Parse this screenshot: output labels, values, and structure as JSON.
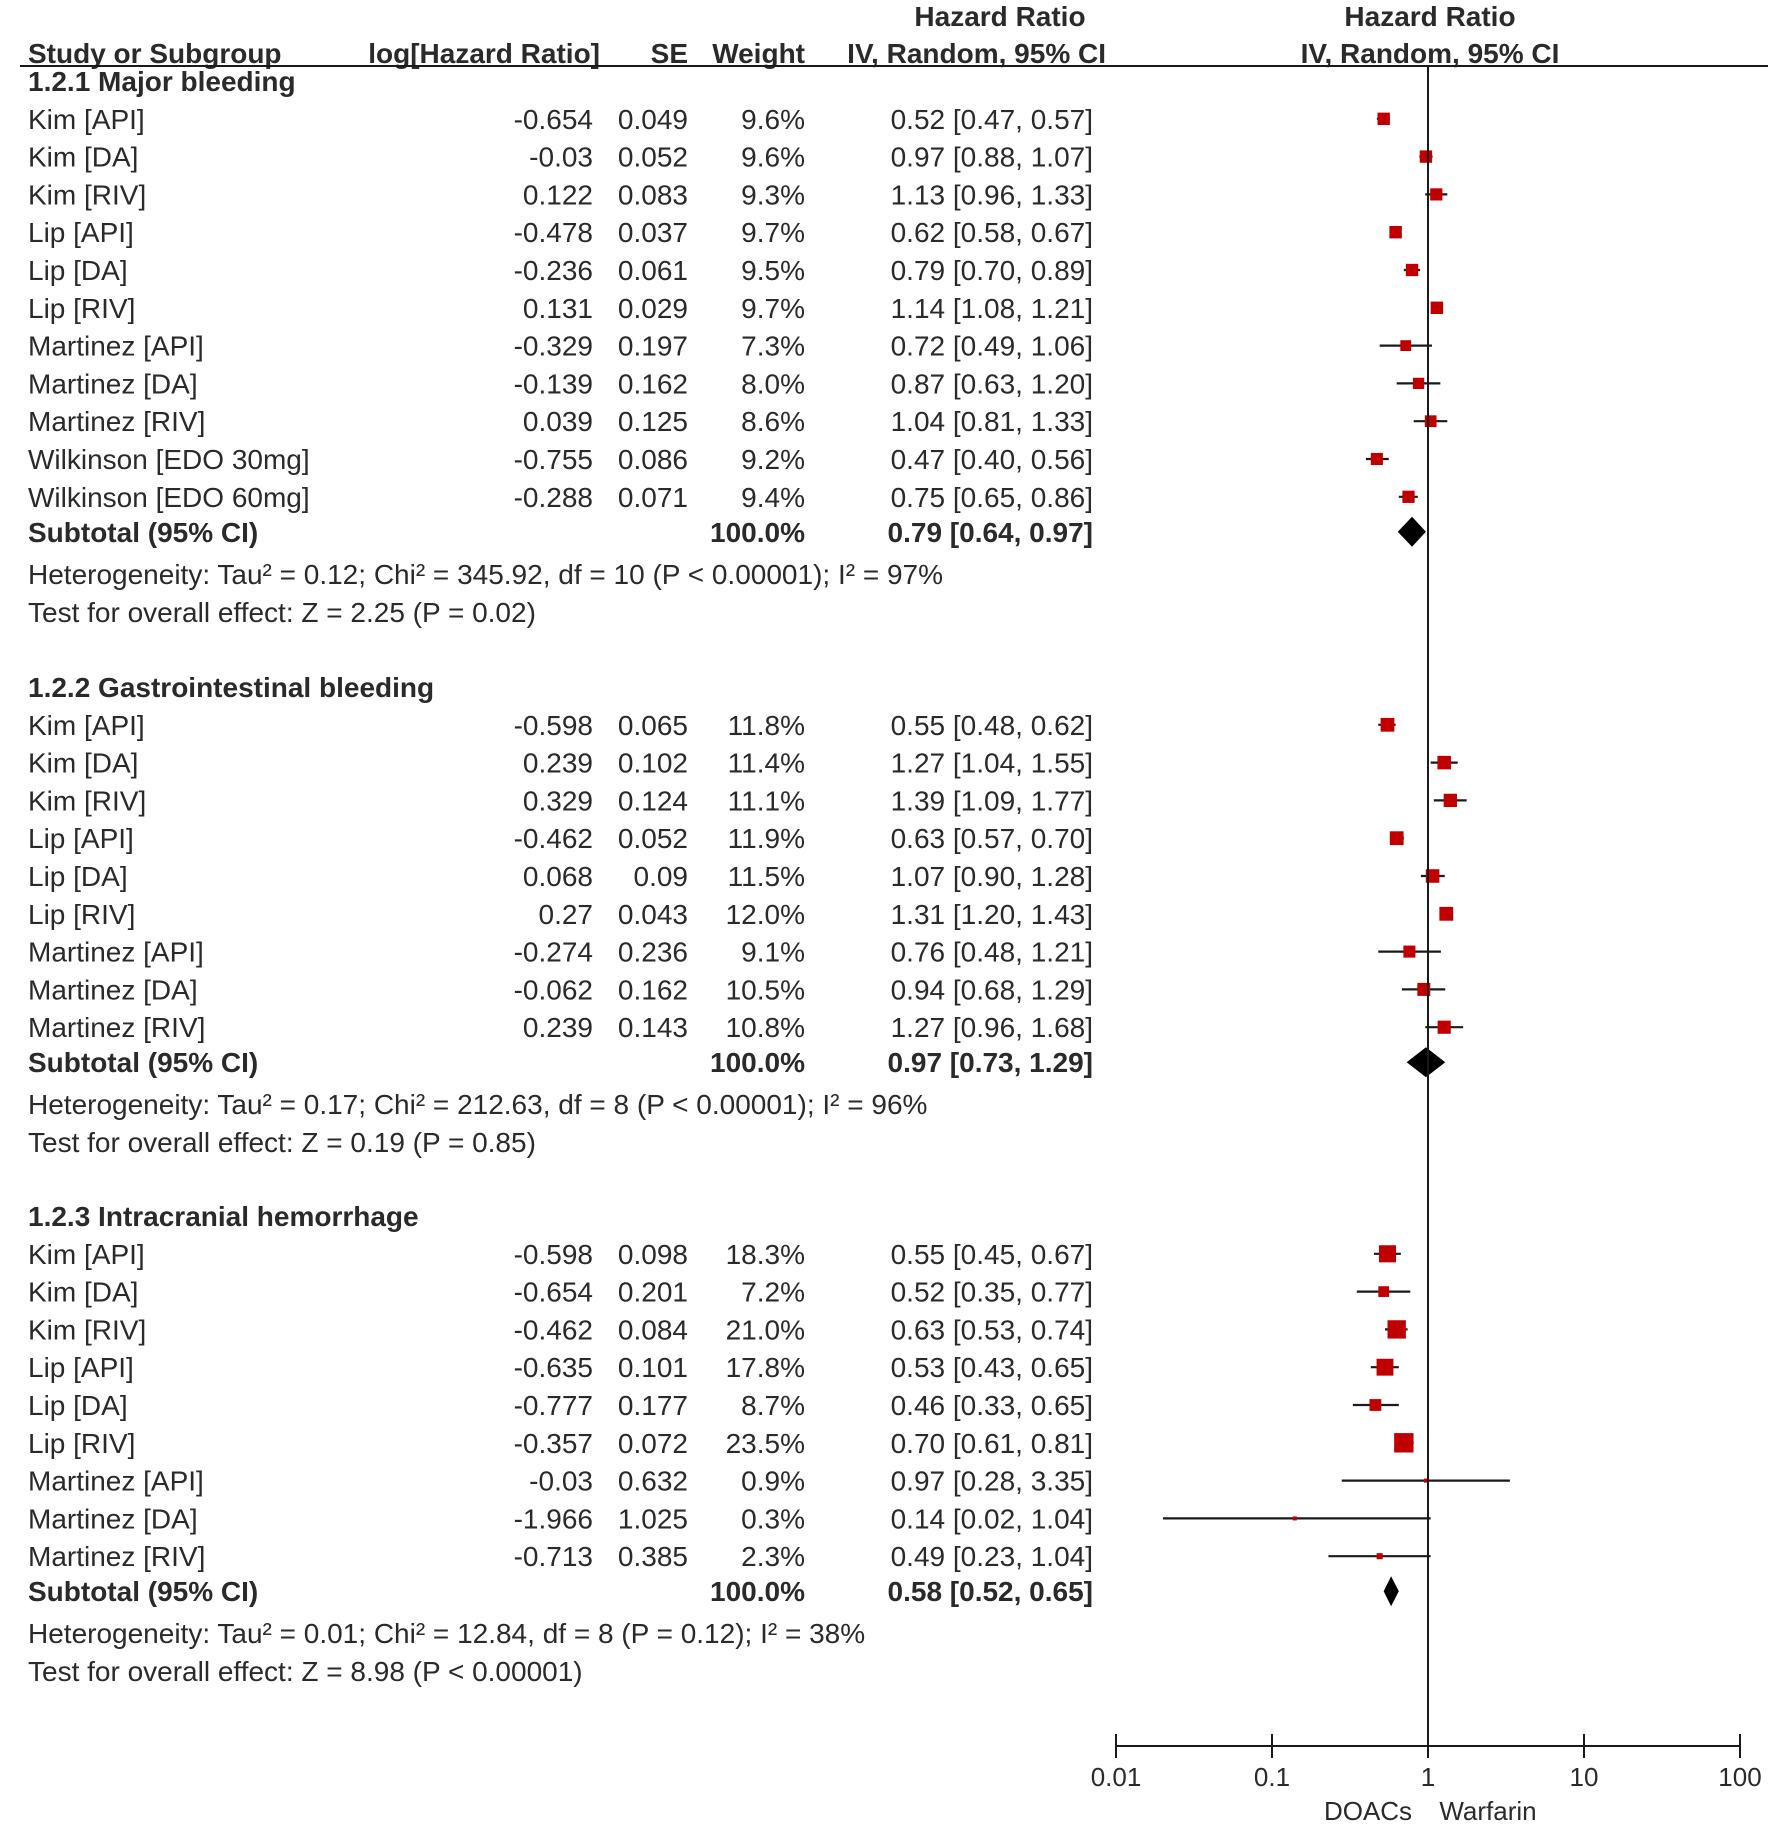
{
  "chart_data": {
    "type": "forest",
    "columns": {
      "study": "Study or Subgroup",
      "log_hr": "log[Hazard Ratio]",
      "se": "SE",
      "weight": "Weight",
      "hr_group": "Hazard Ratio",
      "hr_method": "IV, Random, 95% CI",
      "plot_group": "Hazard Ratio",
      "plot_method": "IV, Random, 95% CI"
    },
    "x_axis": {
      "scale": "log",
      "range": [
        0.01,
        100
      ],
      "ticks": [
        0.01,
        0.1,
        1,
        10,
        100
      ],
      "tick_labels": [
        "0.01",
        "0.1",
        "1",
        "10",
        "100"
      ],
      "left_label": "DOACs",
      "right_label": "Warfarin"
    },
    "colors": {
      "square": "#c00000",
      "line": "#1a1a1a",
      "diamond": "#000000",
      "text": "#2a2a2a"
    },
    "subgroups": [
      {
        "title": "1.2.1 Major bleeding",
        "studies": [
          {
            "name": "Kim [API]",
            "log_hr": "-0.654",
            "se": "0.049",
            "weight": "9.6%",
            "hr_text": "0.52 [0.47, 0.57]",
            "hr": 0.52,
            "lo": 0.47,
            "hi": 0.57
          },
          {
            "name": "Kim [DA]",
            "log_hr": "-0.03",
            "se": "0.052",
            "weight": "9.6%",
            "hr_text": "0.97 [0.88, 1.07]",
            "hr": 0.97,
            "lo": 0.88,
            "hi": 1.07
          },
          {
            "name": "Kim [RIV]",
            "log_hr": "0.122",
            "se": "0.083",
            "weight": "9.3%",
            "hr_text": "1.13 [0.96, 1.33]",
            "hr": 1.13,
            "lo": 0.96,
            "hi": 1.33
          },
          {
            "name": "Lip [API]",
            "log_hr": "-0.478",
            "se": "0.037",
            "weight": "9.7%",
            "hr_text": "0.62 [0.58, 0.67]",
            "hr": 0.62,
            "lo": 0.58,
            "hi": 0.67
          },
          {
            "name": "Lip [DA]",
            "log_hr": "-0.236",
            "se": "0.061",
            "weight": "9.5%",
            "hr_text": "0.79 [0.70, 0.89]",
            "hr": 0.79,
            "lo": 0.7,
            "hi": 0.89
          },
          {
            "name": "Lip [RIV]",
            "log_hr": "0.131",
            "se": "0.029",
            "weight": "9.7%",
            "hr_text": "1.14 [1.08, 1.21]",
            "hr": 1.14,
            "lo": 1.08,
            "hi": 1.21
          },
          {
            "name": "Martinez [API]",
            "log_hr": "-0.329",
            "se": "0.197",
            "weight": "7.3%",
            "hr_text": "0.72 [0.49, 1.06]",
            "hr": 0.72,
            "lo": 0.49,
            "hi": 1.06
          },
          {
            "name": "Martinez [DA]",
            "log_hr": "-0.139",
            "se": "0.162",
            "weight": "8.0%",
            "hr_text": "0.87 [0.63, 1.20]",
            "hr": 0.87,
            "lo": 0.63,
            "hi": 1.2
          },
          {
            "name": "Martinez [RIV]",
            "log_hr": "0.039",
            "se": "0.125",
            "weight": "8.6%",
            "hr_text": "1.04 [0.81, 1.33]",
            "hr": 1.04,
            "lo": 0.81,
            "hi": 1.33
          },
          {
            "name": "Wilkinson [EDO 30mg]",
            "log_hr": "-0.755",
            "se": "0.086",
            "weight": "9.2%",
            "hr_text": "0.47 [0.40, 0.56]",
            "hr": 0.47,
            "lo": 0.4,
            "hi": 0.56
          },
          {
            "name": "Wilkinson [EDO 60mg]",
            "log_hr": "-0.288",
            "se": "0.071",
            "weight": "9.4%",
            "hr_text": "0.75 [0.65, 0.86]",
            "hr": 0.75,
            "lo": 0.65,
            "hi": 0.86
          }
        ],
        "subtotal": {
          "label": "Subtotal (95% CI)",
          "weight": "100.0%",
          "hr_text": "0.79 [0.64, 0.97]",
          "hr": 0.79,
          "lo": 0.64,
          "hi": 0.97
        },
        "heterogeneity": "Heterogeneity: Tau² = 0.12; Chi² = 345.92, df = 10 (P < 0.00001); I² = 97%",
        "overall": "Test for overall effect: Z = 2.25 (P = 0.02)"
      },
      {
        "title": "1.2.2 Gastrointestinal bleeding",
        "studies": [
          {
            "name": "Kim [API]",
            "log_hr": "-0.598",
            "se": "0.065",
            "weight": "11.8%",
            "hr_text": "0.55 [0.48, 0.62]",
            "hr": 0.55,
            "lo": 0.48,
            "hi": 0.62
          },
          {
            "name": "Kim [DA]",
            "log_hr": "0.239",
            "se": "0.102",
            "weight": "11.4%",
            "hr_text": "1.27 [1.04, 1.55]",
            "hr": 1.27,
            "lo": 1.04,
            "hi": 1.55
          },
          {
            "name": "Kim [RIV]",
            "log_hr": "0.329",
            "se": "0.124",
            "weight": "11.1%",
            "hr_text": "1.39 [1.09, 1.77]",
            "hr": 1.39,
            "lo": 1.09,
            "hi": 1.77
          },
          {
            "name": "Lip [API]",
            "log_hr": "-0.462",
            "se": "0.052",
            "weight": "11.9%",
            "hr_text": "0.63 [0.57, 0.70]",
            "hr": 0.63,
            "lo": 0.57,
            "hi": 0.7
          },
          {
            "name": "Lip [DA]",
            "log_hr": "0.068",
            "se": "0.09",
            "weight": "11.5%",
            "hr_text": "1.07 [0.90, 1.28]",
            "hr": 1.07,
            "lo": 0.9,
            "hi": 1.28
          },
          {
            "name": "Lip [RIV]",
            "log_hr": "0.27",
            "se": "0.043",
            "weight": "12.0%",
            "hr_text": "1.31 [1.20, 1.43]",
            "hr": 1.31,
            "lo": 1.2,
            "hi": 1.43
          },
          {
            "name": "Martinez [API]",
            "log_hr": "-0.274",
            "se": "0.236",
            "weight": "9.1%",
            "hr_text": "0.76 [0.48, 1.21]",
            "hr": 0.76,
            "lo": 0.48,
            "hi": 1.21
          },
          {
            "name": "Martinez [DA]",
            "log_hr": "-0.062",
            "se": "0.162",
            "weight": "10.5%",
            "hr_text": "0.94 [0.68, 1.29]",
            "hr": 0.94,
            "lo": 0.68,
            "hi": 1.29
          },
          {
            "name": "Martinez [RIV]",
            "log_hr": "0.239",
            "se": "0.143",
            "weight": "10.8%",
            "hr_text": "1.27 [0.96, 1.68]",
            "hr": 1.27,
            "lo": 0.96,
            "hi": 1.68
          }
        ],
        "subtotal": {
          "label": "Subtotal (95% CI)",
          "weight": "100.0%",
          "hr_text": "0.97 [0.73, 1.29]",
          "hr": 0.97,
          "lo": 0.73,
          "hi": 1.29
        },
        "heterogeneity": "Heterogeneity: Tau² = 0.17; Chi² = 212.63, df = 8 (P < 0.00001); I² = 96%",
        "overall": "Test for overall effect: Z = 0.19 (P = 0.85)"
      },
      {
        "title": "1.2.3 Intracranial hemorrhage",
        "studies": [
          {
            "name": "Kim [API]",
            "log_hr": "-0.598",
            "se": "0.098",
            "weight": "18.3%",
            "hr_text": "0.55 [0.45, 0.67]",
            "hr": 0.55,
            "lo": 0.45,
            "hi": 0.67
          },
          {
            "name": "Kim [DA]",
            "log_hr": "-0.654",
            "se": "0.201",
            "weight": "7.2%",
            "hr_text": "0.52 [0.35, 0.77]",
            "hr": 0.52,
            "lo": 0.35,
            "hi": 0.77
          },
          {
            "name": "Kim [RIV]",
            "log_hr": "-0.462",
            "se": "0.084",
            "weight": "21.0%",
            "hr_text": "0.63 [0.53, 0.74]",
            "hr": 0.63,
            "lo": 0.53,
            "hi": 0.74
          },
          {
            "name": "Lip [API]",
            "log_hr": "-0.635",
            "se": "0.101",
            "weight": "17.8%",
            "hr_text": "0.53 [0.43, 0.65]",
            "hr": 0.53,
            "lo": 0.43,
            "hi": 0.65
          },
          {
            "name": "Lip [DA]",
            "log_hr": "-0.777",
            "se": "0.177",
            "weight": "8.7%",
            "hr_text": "0.46 [0.33, 0.65]",
            "hr": 0.46,
            "lo": 0.33,
            "hi": 0.65
          },
          {
            "name": "Lip [RIV]",
            "log_hr": "-0.357",
            "se": "0.072",
            "weight": "23.5%",
            "hr_text": "0.70 [0.61, 0.81]",
            "hr": 0.7,
            "lo": 0.61,
            "hi": 0.81
          },
          {
            "name": "Martinez [API]",
            "log_hr": "-0.03",
            "se": "0.632",
            "weight": "0.9%",
            "hr_text": "0.97 [0.28, 3.35]",
            "hr": 0.97,
            "lo": 0.28,
            "hi": 3.35
          },
          {
            "name": "Martinez [DA]",
            "log_hr": "-1.966",
            "se": "1.025",
            "weight": "0.3%",
            "hr_text": "0.14 [0.02, 1.04]",
            "hr": 0.14,
            "lo": 0.02,
            "hi": 1.04
          },
          {
            "name": "Martinez [RIV]",
            "log_hr": "-0.713",
            "se": "0.385",
            "weight": "2.3%",
            "hr_text": "0.49 [0.23, 1.04]",
            "hr": 0.49,
            "lo": 0.23,
            "hi": 1.04
          }
        ],
        "subtotal": {
          "label": "Subtotal (95% CI)",
          "weight": "100.0%",
          "hr_text": "0.58 [0.52, 0.65]",
          "hr": 0.58,
          "lo": 0.52,
          "hi": 0.65
        },
        "heterogeneity": "Heterogeneity: Tau² = 0.01; Chi² = 12.84, df = 8 (P = 0.12); I² = 38%",
        "overall": "Test for overall effect: Z = 8.98 (P < 0.00001)"
      }
    ]
  }
}
